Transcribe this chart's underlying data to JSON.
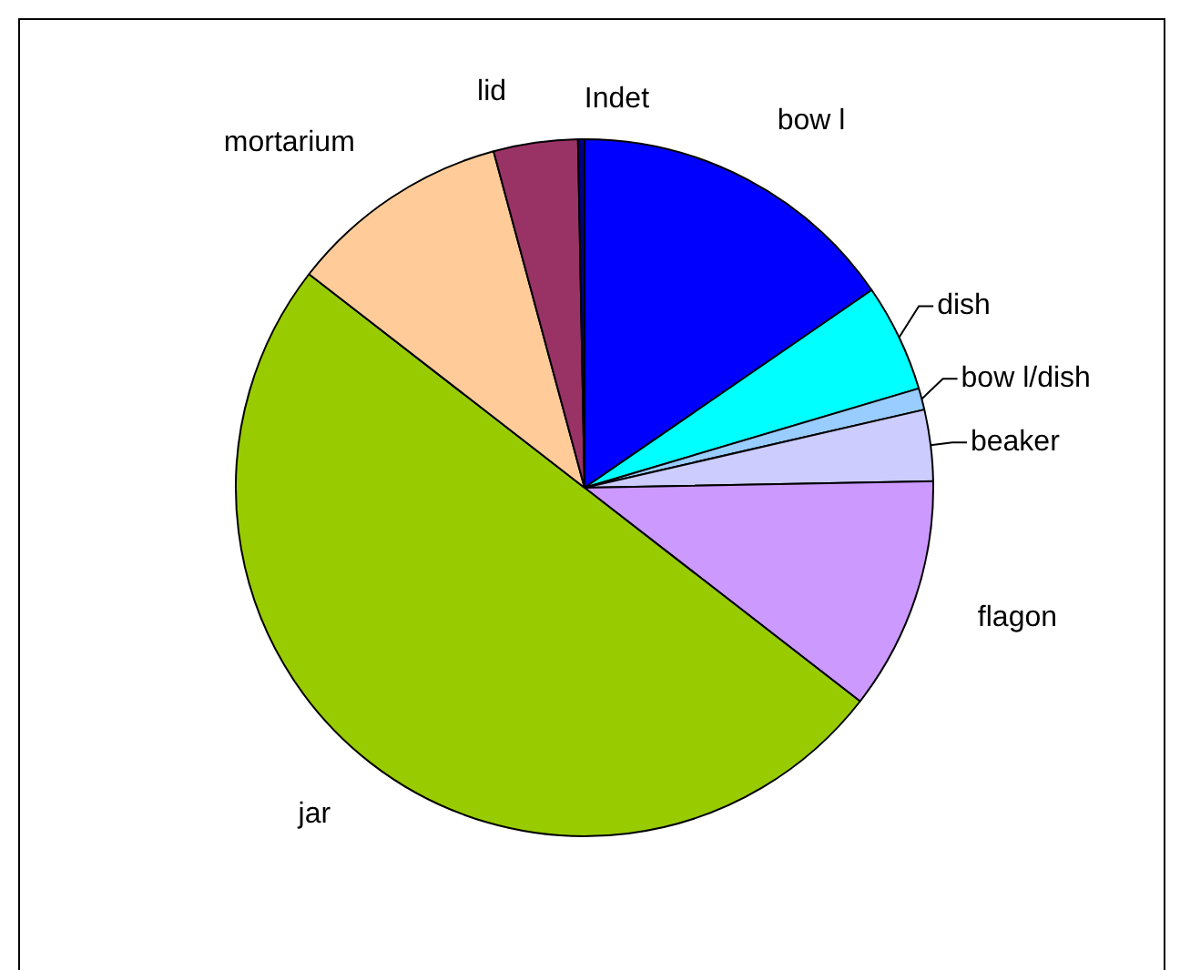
{
  "chart_data": {
    "type": "pie",
    "categories": [
      "bow l",
      "dish",
      "bow l/dish",
      "beaker",
      "flagon",
      "jar",
      "mortarium",
      "lid",
      "Indet"
    ],
    "values": [
      15.4,
      5,
      1,
      3.3,
      10.8,
      50,
      10.3,
      3.9,
      0.3
    ],
    "colors": [
      "#0000ff",
      "#00ffff",
      "#99ccff",
      "#ccccff",
      "#cc99ff",
      "#99cc00",
      "#ffcc99",
      "#993366",
      "#000080"
    ],
    "legend": false
  }
}
